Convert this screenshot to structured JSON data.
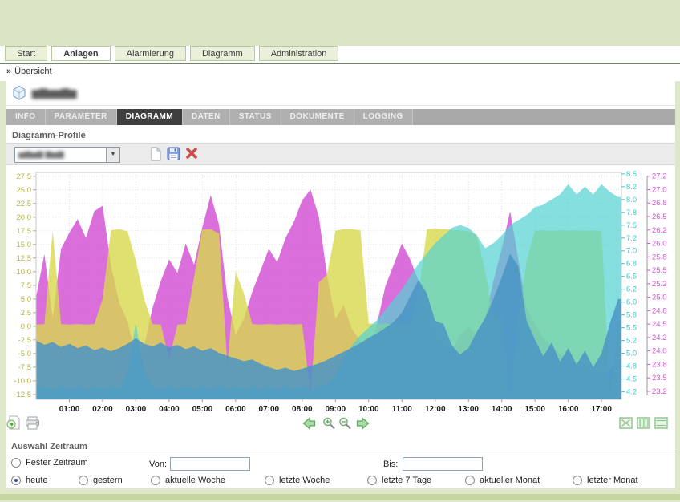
{
  "main_nav": {
    "tabs": [
      {
        "label": "Start",
        "active": false
      },
      {
        "label": "Anlagen",
        "active": true
      },
      {
        "label": "Alarmierung",
        "active": false
      },
      {
        "label": "Diagramm",
        "active": false
      },
      {
        "label": "Administration",
        "active": false
      }
    ]
  },
  "breadcrumb": {
    "arrows": "»",
    "label": "Übersicht"
  },
  "site": {
    "name_redacted": "▆▇▆▆▇▆"
  },
  "sub_nav": {
    "tabs": [
      {
        "label": "INFO",
        "active": false
      },
      {
        "label": "PARAMETER",
        "active": false
      },
      {
        "label": "DIAGRAMM",
        "active": true
      },
      {
        "label": "DATEN",
        "active": false
      },
      {
        "label": "STATUS",
        "active": false
      },
      {
        "label": "DOKUMENTE",
        "active": false
      },
      {
        "label": "LOGGING",
        "active": false
      }
    ]
  },
  "profile_section": {
    "heading": "Diagramm-Profile",
    "selected_profile_redacted": "▅▆▅▆ ▆▅▆",
    "dropdown_arrow": "▼",
    "icons": [
      "new-document",
      "save",
      "delete"
    ]
  },
  "chart_toolbar": {
    "left_icons": [
      "export",
      "print"
    ],
    "center_icons": [
      "arrow-left",
      "zoom-in",
      "zoom-out",
      "arrow-right"
    ],
    "right_icons": [
      "line-chart-toggle",
      "bar-chart-toggle",
      "table-toggle"
    ]
  },
  "zeitraum": {
    "heading": "Auswahl Zeitraum",
    "fixed_option": {
      "label": "Fester Zeitraum",
      "selected": false
    },
    "von_label": "Von:",
    "von_value": "",
    "bis_label": "Bis:",
    "bis_value": "",
    "options": [
      {
        "label": "heute",
        "selected": true
      },
      {
        "label": "gestern",
        "selected": false
      },
      {
        "label": "aktuelle Woche",
        "selected": false
      },
      {
        "label": "letzte Woche",
        "selected": false
      },
      {
        "label": "letzte 7 Tage",
        "selected": false
      },
      {
        "label": "aktueller Monat",
        "selected": false
      },
      {
        "label": "letzter Monat",
        "selected": false
      }
    ]
  },
  "colors": {
    "page_green": "#dde7ca",
    "series_magenta": "#d455d4",
    "series_yellow": "#d8d84e",
    "series_cyan": "#52d2d2",
    "series_blue": "#4a95c4"
  },
  "chart_data": {
    "type": "area",
    "x_unit": "hours",
    "x_start": 0,
    "x_step": 0.25,
    "x_max": 17.6,
    "x_tick_hours": [
      1,
      2,
      3,
      4,
      5,
      6,
      7,
      8,
      9,
      10,
      11,
      12,
      13,
      14,
      15,
      16,
      17
    ],
    "x_tick_labels": [
      "01:00",
      "02:00",
      "03:00",
      "04:00",
      "05:00",
      "06:00",
      "07:00",
      "08:00",
      "09:00",
      "10:00",
      "11:00",
      "12:00",
      "13:00",
      "14:00",
      "15:00",
      "16:00",
      "17:00"
    ],
    "grid": true,
    "axes": {
      "left": {
        "color": "#b3b34a",
        "min": -13.4,
        "max": 28.2,
        "ticks": [
          27.5,
          25.0,
          22.5,
          20.0,
          17.5,
          15.0,
          12.5,
          10.0,
          7.5,
          5.0,
          2.5,
          0.0,
          -2.5,
          -5.0,
          -7.5,
          -10.0,
          -12.5
        ],
        "tick_labels": [
          "27.5",
          "25.0",
          "22.5",
          "20.0",
          "17.5",
          "15.0",
          "12.5",
          "10.0",
          "7.5",
          "5.0",
          "2.5",
          "0.0",
          "-2.5",
          "-5.0",
          "-7.5",
          "-10.0",
          "-12.5"
        ]
      },
      "right_inner": {
        "color": "#3ec6c6",
        "min": 4.1,
        "max": 8.53,
        "ticks": [
          8.5,
          8.25,
          8.0,
          7.75,
          7.5,
          7.25,
          7.0,
          6.75,
          6.5,
          6.25,
          6.0,
          5.75,
          5.5,
          5.25,
          5.0,
          4.75,
          4.5,
          4.25
        ],
        "tick_labels": [
          "8.5",
          "8.2",
          "8.0",
          "7.8",
          "7.5",
          "7.2",
          "7.0",
          "6.8",
          "6.5",
          "6.2",
          "6.0",
          "5.8",
          "5.5",
          "5.2",
          "5.0",
          "4.8",
          "4.5",
          "4.2"
        ]
      },
      "right_outer": {
        "color": "#d455d4",
        "min": 23.1,
        "max": 27.32,
        "ticks": [
          27.25,
          27.0,
          26.75,
          26.5,
          26.25,
          26.0,
          25.75,
          25.5,
          25.25,
          25.0,
          24.75,
          24.5,
          24.25,
          24.0,
          23.75,
          23.5,
          23.25
        ],
        "tick_labels": [
          "27.2",
          "27.0",
          "26.8",
          "26.5",
          "26.2",
          "26.0",
          "25.8",
          "25.5",
          "25.2",
          "25.0",
          "24.8",
          "24.5",
          "24.2",
          "24.0",
          "23.8",
          "23.5",
          "23.2"
        ]
      }
    },
    "series": [
      {
        "name": "magenta-series",
        "axis": "right_outer",
        "color": "#d455d4",
        "opacity": 0.85,
        "values": [
          25.0,
          25.8,
          24.6,
          25.9,
          26.2,
          26.45,
          26.1,
          26.6,
          26.7,
          25.6,
          24.9,
          24.55,
          23.9,
          24.1,
          24.8,
          25.3,
          25.7,
          25.45,
          26.0,
          25.6,
          26.3,
          26.9,
          26.35,
          25.0,
          24.3,
          24.6,
          25.1,
          25.5,
          25.9,
          25.65,
          26.1,
          26.4,
          26.8,
          27.0,
          26.5,
          25.4,
          24.6,
          24.85,
          24.4,
          24.2,
          24.0,
          24.5,
          25.2,
          25.6,
          26.0,
          25.7,
          25.3,
          24.6,
          24.2,
          24.05,
          24.0,
          24.3,
          24.45,
          24.3,
          24.6,
          25.3,
          25.9,
          26.6,
          25.7,
          24.8,
          24.5,
          24.25,
          24.1,
          23.95,
          23.85,
          23.75,
          23.65,
          23.6,
          23.55,
          23.65,
          23.8
        ]
      },
      {
        "name": "yellow-series",
        "axis": "left",
        "color": "#d8d84e",
        "opacity": 0.8,
        "values": [
          0.3,
          0.4,
          17.5,
          0.4,
          0.3,
          0.4,
          0.3,
          0.4,
          5.0,
          17.6,
          17.8,
          17.4,
          12.0,
          5.0,
          0.4,
          0.3,
          -6.0,
          0.3,
          0.4,
          9.0,
          17.7,
          17.8,
          17.0,
          -7.0,
          10.0,
          6.0,
          0.4,
          0.3,
          0.4,
          0.3,
          0.4,
          0.3,
          0.4,
          -12.5,
          8.0,
          9.5,
          17.5,
          17.8,
          17.8,
          17.6,
          0.5,
          0.4,
          0.5,
          0.4,
          0.5,
          0.4,
          6.0,
          17.8,
          17.9,
          17.8,
          17.7,
          17.6,
          17.4,
          16.8,
          10.0,
          1.8,
          2.0,
          -13.3,
          1.8,
          12.0,
          17.5,
          17.6,
          17.5,
          17.6,
          17.5,
          17.6,
          17.5,
          17.6,
          17.4,
          -13.0,
          0.4
        ]
      },
      {
        "name": "cyan-series",
        "axis": "right_inner",
        "color": "#52d2d2",
        "opacity": 0.7,
        "values": [
          4.3,
          4.35,
          4.3,
          4.35,
          4.3,
          4.35,
          4.3,
          4.35,
          4.3,
          4.35,
          4.3,
          4.6,
          5.6,
          4.6,
          4.35,
          4.3,
          4.35,
          4.3,
          4.35,
          4.3,
          4.35,
          4.3,
          4.35,
          4.3,
          4.35,
          4.3,
          4.35,
          4.3,
          4.35,
          4.3,
          4.35,
          4.3,
          4.35,
          4.3,
          4.35,
          4.4,
          4.55,
          4.9,
          5.15,
          5.35,
          5.5,
          5.65,
          5.85,
          6.05,
          6.25,
          6.5,
          6.75,
          6.95,
          7.15,
          7.3,
          7.45,
          7.5,
          7.45,
          7.3,
          7.05,
          7.15,
          7.3,
          7.5,
          7.6,
          7.7,
          7.85,
          7.9,
          8.0,
          8.1,
          8.3,
          8.1,
          8.25,
          8.1,
          8.3,
          8.15,
          8.05
        ]
      },
      {
        "name": "blue-series",
        "axis": "left",
        "color": "#4a95c4",
        "opacity": 0.85,
        "values": [
          -2.6,
          -3.4,
          -2.9,
          -3.8,
          -3.2,
          -4.0,
          -3.5,
          -4.4,
          -3.9,
          -4.6,
          -4.0,
          -3.2,
          -2.2,
          -3.2,
          -3.7,
          -3.0,
          -3.9,
          -3.4,
          -4.2,
          -3.7,
          -4.5,
          -4.0,
          -4.9,
          -5.4,
          -5.9,
          -6.4,
          -6.1,
          -6.9,
          -7.5,
          -8.0,
          -7.6,
          -8.2,
          -7.8,
          -7.3,
          -6.8,
          -6.2,
          -5.4,
          -4.7,
          -3.9,
          -3.1,
          -2.1,
          -1.3,
          -0.3,
          0.8,
          2.5,
          5.5,
          8.5,
          6.0,
          1.0,
          0.4,
          -3.5,
          -5.2,
          -4.0,
          -1.0,
          1.5,
          5.0,
          9.0,
          13.3,
          11.0,
          1.0,
          -2.5,
          -5.5,
          -3.0,
          -6.5,
          -4.0,
          -7.0,
          -4.5,
          -7.5,
          -5.0,
          0.5,
          5.0
        ]
      }
    ]
  }
}
